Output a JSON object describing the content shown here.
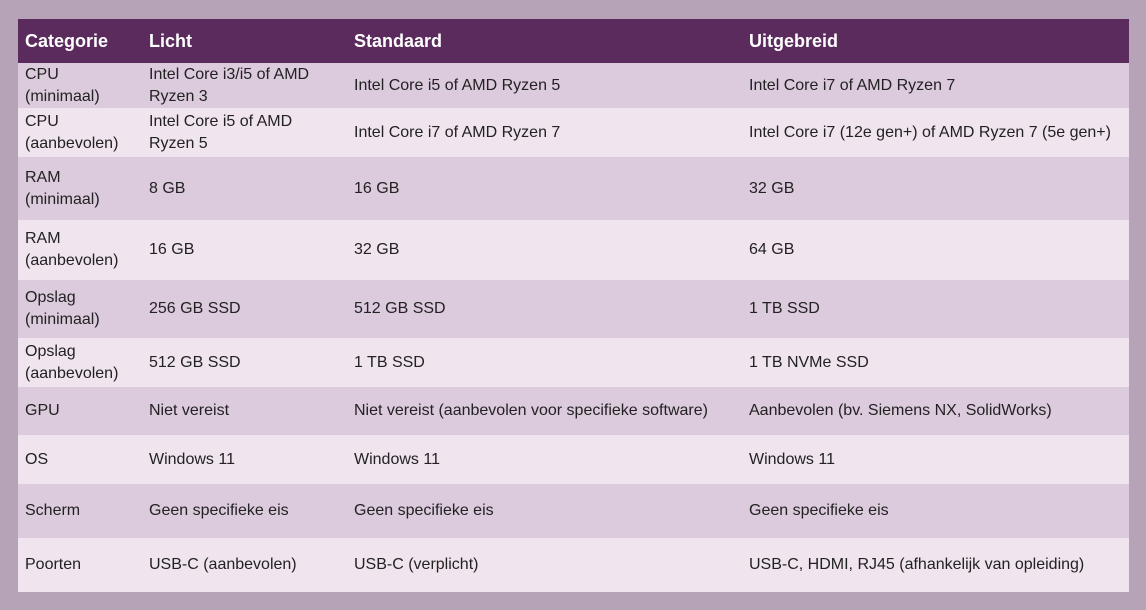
{
  "table": {
    "header": [
      "Categorie",
      "Licht",
      "Standaard",
      "Uitgebreid"
    ],
    "rows": [
      [
        "CPU (minimaal)",
        "Intel Core i3/i5 of AMD Ryzen 3",
        "Intel Core i5 of AMD Ryzen 5",
        "Intel Core i7 of AMD Ryzen 7"
      ],
      [
        "CPU (aanbevolen)",
        "Intel Core i5 of AMD Ryzen 5",
        "Intel Core i7 of AMD Ryzen 7",
        "Intel Core i7 (12e gen+) of AMD Ryzen 7 (5e gen+)"
      ],
      [
        "RAM (minimaal)",
        "8 GB",
        "16 GB",
        "32 GB"
      ],
      [
        "RAM (aanbevolen)",
        "16 GB",
        "32 GB",
        "64 GB"
      ],
      [
        "Opslag (minimaal)",
        "256 GB SSD",
        "512 GB SSD",
        "1 TB SSD"
      ],
      [
        "Opslag (aanbevolen)",
        "512 GB SSD",
        "1 TB SSD",
        "1 TB NVMe SSD"
      ],
      [
        "GPU",
        "Niet vereist",
        "Niet vereist (aanbevolen voor specifieke software)",
        "Aanbevolen (bv. Siemens NX, SolidWorks)"
      ],
      [
        "OS",
        "Windows 11",
        "Windows 11",
        "Windows 11"
      ],
      [
        "Scherm",
        "Geen specifieke eis",
        "Geen specifieke eis",
        "Geen specifieke eis"
      ],
      [
        "Poorten",
        "USB-C (aanbevolen)",
        "USB-C (verplicht)",
        "USB-C, HDMI, RJ45 (afhankelijk van opleiding)"
      ]
    ]
  }
}
